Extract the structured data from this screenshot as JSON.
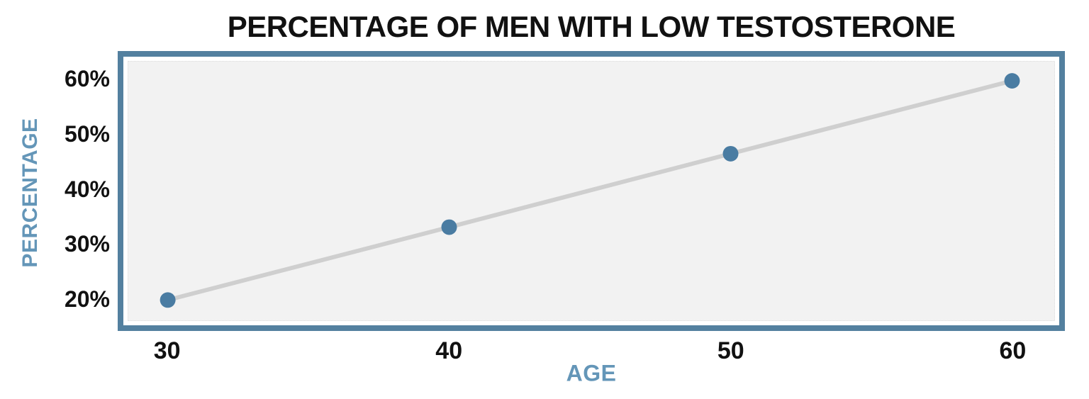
{
  "page": {
    "background": "#ffffff"
  },
  "chart_data": {
    "type": "line",
    "title": "PERCENTAGE OF MEN WITH LOW TESTOSTERONE",
    "xlabel": "AGE",
    "ylabel": "PERCENTAGE",
    "x": [
      30,
      40,
      50,
      60
    ],
    "series": [
      {
        "name": "percent-of-men-with-low-testosterone",
        "values": [
          20,
          33.3,
          46.7,
          60
        ]
      }
    ],
    "x_ticks": [
      {
        "value": 30,
        "label": "30"
      },
      {
        "value": 40,
        "label": "40"
      },
      {
        "value": 50,
        "label": "50"
      },
      {
        "value": 60,
        "label": "60"
      }
    ],
    "y_ticks": [
      {
        "value": 20,
        "label": "20%"
      },
      {
        "value": 30,
        "label": "30%"
      },
      {
        "value": 40,
        "label": "40%"
      },
      {
        "value": 50,
        "label": "50%"
      },
      {
        "value": 60,
        "label": "60%"
      }
    ],
    "xlim": [
      28.6,
      61.5
    ],
    "ylim": [
      16.3,
      63.5
    ],
    "grid": false,
    "legend": null,
    "marker": "circle",
    "marker_radius": 11,
    "line_width": 6,
    "colors": {
      "frame_border": "#53809f",
      "plot_background": "#f2f2f2",
      "line": "#cfcfcf",
      "marker": "#4a7ca2",
      "axis_title": "#6496b8",
      "tick_label": "#111111",
      "title": "#111111",
      "page_background": "#ffffff"
    }
  }
}
